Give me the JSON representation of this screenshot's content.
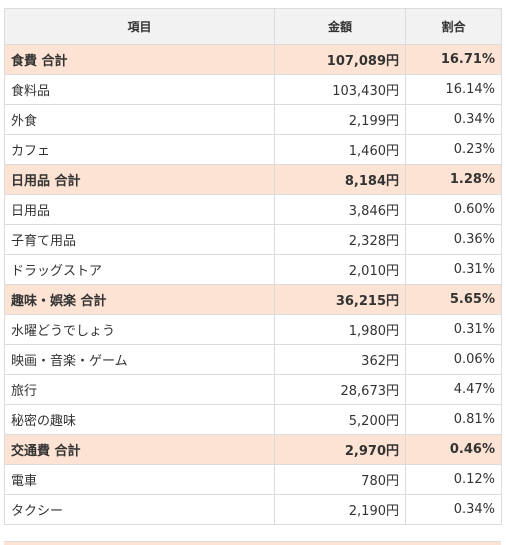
{
  "colors": {
    "header_bg": "#f2f2f2",
    "subtotal_bg": "#fde3d3",
    "border": "#dcdcdc"
  },
  "headers": {
    "item": "項目",
    "amount": "金額",
    "ratio": "割合"
  },
  "rows": [
    {
      "type": "subtotal",
      "name": "食費 合計",
      "amount": "107,089円",
      "ratio": "16.71%"
    },
    {
      "type": "item",
      "name": "食料品",
      "amount": "103,430円",
      "ratio": "16.14%"
    },
    {
      "type": "item",
      "name": "外食",
      "amount": "2,199円",
      "ratio": "0.34%"
    },
    {
      "type": "item",
      "name": "カフェ",
      "amount": "1,460円",
      "ratio": "0.23%"
    },
    {
      "type": "subtotal",
      "name": "日用品 合計",
      "amount": "8,184円",
      "ratio": "1.28%"
    },
    {
      "type": "item",
      "name": "日用品",
      "amount": "3,846円",
      "ratio": "0.60%"
    },
    {
      "type": "item",
      "name": "子育て用品",
      "amount": "2,328円",
      "ratio": "0.36%"
    },
    {
      "type": "item",
      "name": "ドラッグストア",
      "amount": "2,010円",
      "ratio": "0.31%"
    },
    {
      "type": "subtotal",
      "name": "趣味・娯楽 合計",
      "amount": "36,215円",
      "ratio": "5.65%"
    },
    {
      "type": "item",
      "name": "水曜どうでしょう",
      "amount": "1,980円",
      "ratio": "0.31%"
    },
    {
      "type": "item",
      "name": "映画・音楽・ゲーム",
      "amount": "362円",
      "ratio": "0.06%"
    },
    {
      "type": "item",
      "name": "旅行",
      "amount": "28,673円",
      "ratio": "4.47%"
    },
    {
      "type": "item",
      "name": "秘密の趣味",
      "amount": "5,200円",
      "ratio": "0.81%"
    },
    {
      "type": "subtotal",
      "name": "交通費 合計",
      "amount": "2,970円",
      "ratio": "0.46%"
    },
    {
      "type": "item",
      "name": "電車",
      "amount": "780円",
      "ratio": "0.12%"
    },
    {
      "type": "item",
      "name": "タクシー",
      "amount": "2,190円",
      "ratio": "0.34%"
    }
  ]
}
